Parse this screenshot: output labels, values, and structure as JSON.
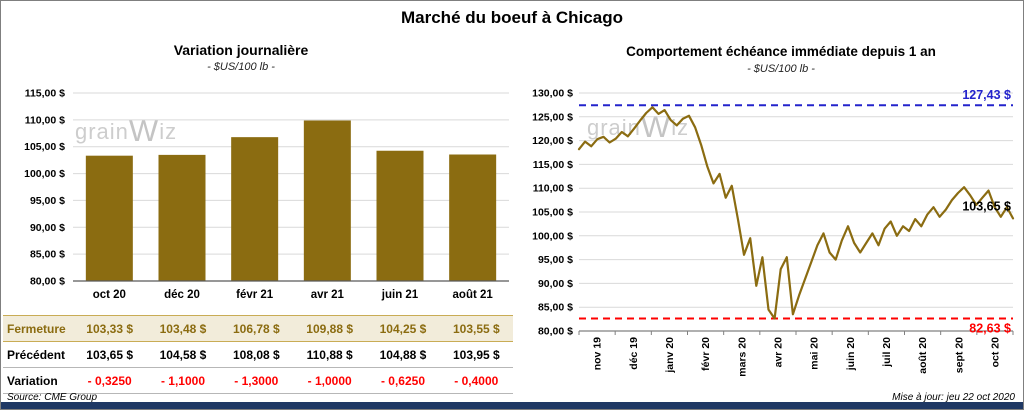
{
  "page": {
    "title": "Marché du boeuf à Chicago",
    "source_note": "Source: CME Group",
    "update_note": "Mise à jour: jeu 22 oct 2020",
    "watermark_parts": [
      "grain",
      "W",
      "iz"
    ]
  },
  "colors": {
    "gold": "#8B6C11",
    "blue": "#2323CC",
    "red": "#FF0000",
    "navy": "#1F3864",
    "beige_row": "#F2ECDA",
    "grid": "#D9D9D9",
    "watermark": "#CDCDCD"
  },
  "chart_data": [
    {
      "type": "bar",
      "title": "Variation  journalière",
      "subtitle": "- $US/100 lb -",
      "categories": [
        "oct 20",
        "déc 20",
        "févr 21",
        "avr 21",
        "juin 21",
        "août 21"
      ],
      "values": [
        103.33,
        103.48,
        106.78,
        109.88,
        104.25,
        103.55
      ],
      "ylim": [
        80,
        115
      ],
      "ytick_step": 5,
      "ytick_suffix": " $",
      "grid": true,
      "bar_color": "#8B6C11"
    },
    {
      "type": "line",
      "title": "Comportement  échéance  immédiate  depuis 1 an",
      "subtitle": "- $US/100 lb -",
      "x_tick_labels": [
        "nov 19",
        "déc 19",
        "janv 20",
        "févr 20",
        "mars 20",
        "avr 20",
        "mai 20",
        "juin 20",
        "juil 20",
        "août 20",
        "sept 20",
        "oct 20"
      ],
      "values": [
        118.2,
        119.8,
        118.8,
        120.3,
        120.8,
        119.6,
        120.4,
        121.8,
        120.9,
        122.5,
        124.2,
        125.8,
        127.0,
        125.6,
        126.4,
        124.3,
        123.2,
        124.6,
        125.2,
        122.8,
        119.0,
        114.5,
        111.0,
        113.0,
        108.0,
        110.5,
        103.5,
        96.0,
        99.5,
        89.5,
        95.5,
        84.5,
        82.63,
        93.0,
        95.5,
        83.5,
        87.5,
        91.0,
        94.5,
        98.0,
        100.5,
        96.5,
        95.0,
        99.0,
        102.0,
        98.5,
        96.5,
        98.5,
        100.5,
        98.0,
        101.5,
        103.0,
        100.0,
        102.0,
        101.0,
        103.5,
        102.0,
        104.5,
        106.0,
        104.0,
        105.5,
        107.5,
        109.0,
        110.2,
        108.5,
        106.5,
        108.0,
        109.5,
        106.0,
        104.0,
        106.0,
        103.65
      ],
      "ylim": [
        80,
        130
      ],
      "ytick_step": 5,
      "ytick_suffix": " $",
      "grid": true,
      "line_color": "#8B6C11",
      "ref_lines": [
        {
          "value": 127.43,
          "label": "127,43 $",
          "color": "#2323CC",
          "style": "dashed",
          "label_pos": "above"
        },
        {
          "value": 82.63,
          "label": "82,63 $",
          "color": "#FF0000",
          "style": "dashed",
          "label_pos": "below"
        }
      ],
      "end_label": {
        "value": 103.65,
        "label": "103,65 $",
        "color": "#000000"
      }
    }
  ],
  "price_table": {
    "rows": [
      {
        "label": "Fermeture",
        "values": [
          "103,33  $",
          "103,48  $",
          "106,78  $",
          "109,88  $",
          "104,25  $",
          "103,55  $"
        ]
      },
      {
        "label": "Précédent",
        "values": [
          "103,65  $",
          "104,58  $",
          "108,08  $",
          "110,88  $",
          "104,88  $",
          "103,95  $"
        ]
      },
      {
        "label": "Variation",
        "values": [
          "- 0,3250",
          "- 1,1000",
          "- 1,3000",
          "- 1,0000",
          "- 0,6250",
          "- 0,4000"
        ]
      }
    ]
  }
}
